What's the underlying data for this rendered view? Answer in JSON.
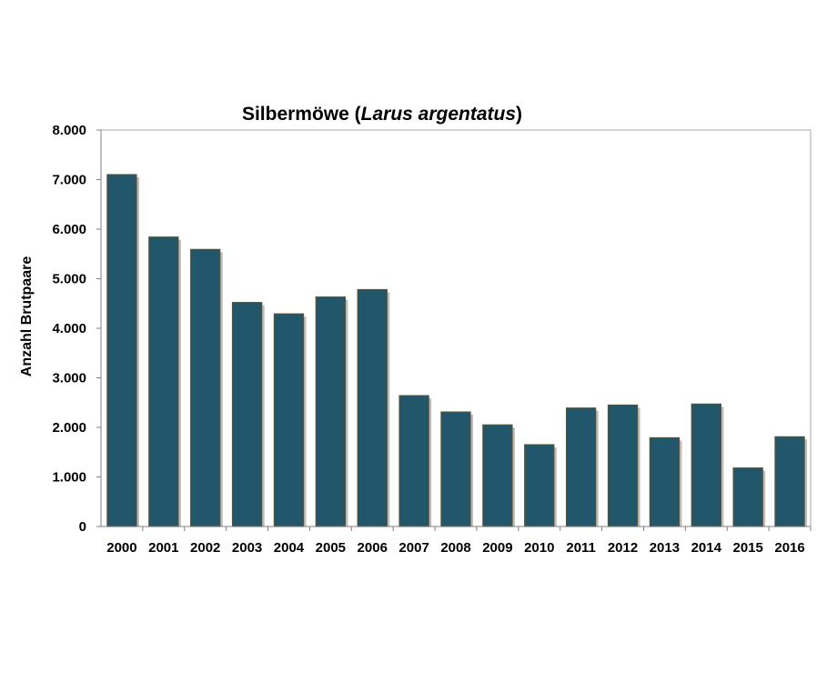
{
  "chart_data": {
    "type": "bar",
    "title": "Silbermöwe (",
    "title_species": "Larus argentatus",
    "title_suffix": ")",
    "xlabel": "",
    "ylabel": "Anzahl Brutpaare",
    "categories": [
      "2000",
      "2001",
      "2002",
      "2003",
      "2004",
      "2005",
      "2006",
      "2007",
      "2008",
      "2009",
      "2010",
      "2011",
      "2012",
      "2013",
      "2014",
      "2015",
      "2016"
    ],
    "series": [
      {
        "values": [
          7100,
          5840,
          5590,
          4520,
          4290,
          4630,
          4780,
          2640,
          2310,
          2050,
          1650,
          2390,
          2450,
          1790,
          2470,
          1180,
          1810
        ]
      }
    ],
    "ylim": [
      0,
      8000
    ],
    "yticks": [
      0,
      1000,
      2000,
      3000,
      4000,
      5000,
      6000,
      7000,
      8000
    ],
    "ytick_labels": [
      "0",
      "1.000",
      "2.000",
      "3.000",
      "4.000",
      "5.000",
      "6.000",
      "7.000",
      "8.000"
    ],
    "grid": false,
    "legend": "none",
    "bar_color": "#22566a",
    "bar_edge_color": "#5a5030"
  }
}
